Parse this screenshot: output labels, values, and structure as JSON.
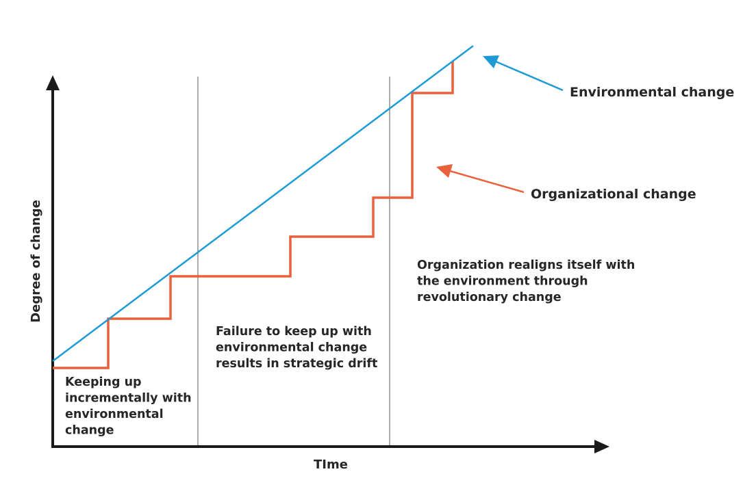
{
  "axes": {
    "x_label": "TIme",
    "y_label": "Degree of change"
  },
  "legend": {
    "environmental": "Environmental change",
    "organizational": "Organizational change"
  },
  "regions": [
    {
      "lines": [
        "Keeping up",
        "incrementally with",
        "environmental",
        "change"
      ]
    },
    {
      "lines": [
        "Failure to keep up with",
        "environmental change",
        "results in strategic drift"
      ]
    },
    {
      "lines": [
        "Organization realigns itself with",
        "the environment through",
        "revolutionary change"
      ]
    }
  ],
  "colors": {
    "environmental": "#1d9ad6",
    "organizational": "#e8603c",
    "axis": "#1a1a1a",
    "divider": "#555555",
    "text": "#262626"
  }
}
